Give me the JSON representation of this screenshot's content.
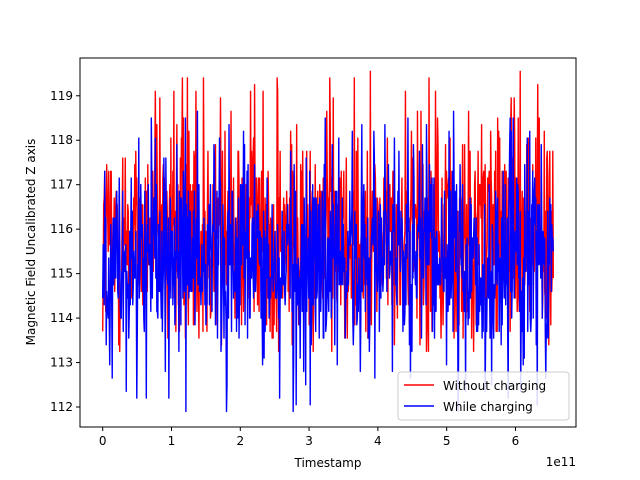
{
  "chart_data": {
    "type": "line",
    "title": "",
    "xlabel": "Timestamp",
    "ylabel": "Magnetic Field Uncalibrated Z axis",
    "x_offset_label": "1e11",
    "x_unit_scale": 100000000000,
    "xlim": [
      -0.33,
      6.88
    ],
    "ylim": [
      111.55,
      119.85
    ],
    "x_ticks": [
      0,
      1,
      2,
      3,
      4,
      5,
      6
    ],
    "x_tick_labels": [
      "0",
      "1",
      "2",
      "3",
      "4",
      "5",
      "6"
    ],
    "y_ticks": [
      112,
      113,
      114,
      115,
      116,
      117,
      118,
      119
    ],
    "y_tick_labels": [
      "112",
      "113",
      "114",
      "115",
      "116",
      "117",
      "118",
      "119"
    ],
    "grid": false,
    "legend_position": "lower-right",
    "series": [
      {
        "name": "Without charging",
        "color": "#ff0000",
        "x_range": [
          0.0,
          6.55
        ],
        "points": 900,
        "value_range": [
          113.3,
          119.5
        ],
        "center": 115.9,
        "spread": 1.1
      },
      {
        "name": "While charging",
        "color": "#0000ff",
        "x_range": [
          0.0,
          6.55
        ],
        "points": 900,
        "value_range": [
          111.9,
          118.6
        ],
        "center": 115.3,
        "spread": 1.0
      }
    ]
  }
}
